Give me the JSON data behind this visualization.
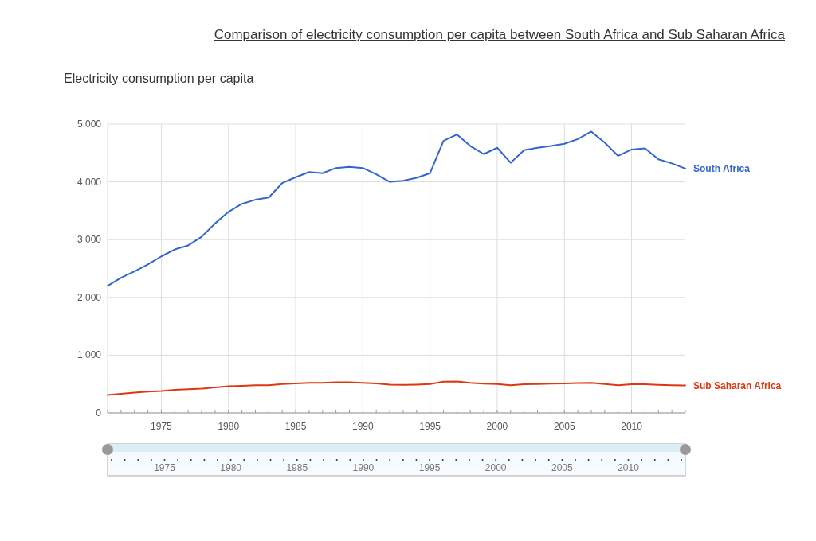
{
  "chart_data": {
    "type": "line",
    "title": "Comparison of electricity consumption per capita between South Africa and Sub Saharan Africa",
    "ylabel": "Electricity consumption per capita",
    "x": [
      1971,
      1972,
      1973,
      1974,
      1975,
      1976,
      1977,
      1978,
      1979,
      1980,
      1981,
      1982,
      1983,
      1984,
      1985,
      1986,
      1987,
      1988,
      1989,
      1990,
      1991,
      1992,
      1993,
      1994,
      1995,
      1996,
      1997,
      1998,
      1999,
      2000,
      2001,
      2002,
      2003,
      2004,
      2005,
      2006,
      2007,
      2008,
      2009,
      2010,
      2011,
      2012,
      2013,
      2014
    ],
    "series": [
      {
        "name": "South Africa",
        "color": "#3366cc",
        "values": [
          2200,
          2340,
          2450,
          2570,
          2710,
          2830,
          2900,
          3050,
          3280,
          3480,
          3620,
          3690,
          3730,
          3980,
          4080,
          4170,
          4150,
          4240,
          4260,
          4240,
          4130,
          4000,
          4020,
          4070,
          4150,
          4710,
          4820,
          4620,
          4480,
          4590,
          4330,
          4550,
          4590,
          4620,
          4660,
          4740,
          4870,
          4680,
          4450,
          4560,
          4580,
          4390,
          4320,
          4230
        ]
      },
      {
        "name": "Sub Saharan Africa",
        "color": "#dc3912",
        "values": [
          310,
          330,
          350,
          370,
          380,
          400,
          410,
          420,
          440,
          460,
          470,
          480,
          480,
          500,
          510,
          520,
          520,
          530,
          530,
          520,
          510,
          490,
          485,
          490,
          500,
          540,
          545,
          520,
          505,
          500,
          480,
          495,
          500,
          505,
          510,
          515,
          520,
          500,
          480,
          495,
          495,
          485,
          480,
          475
        ]
      }
    ],
    "xlim": [
      1971,
      2014
    ],
    "ylim": [
      0,
      5000
    ],
    "xticks": [
      1975,
      1980,
      1985,
      1990,
      1995,
      2000,
      2005,
      2010
    ],
    "yticks": [
      {
        "value": 0,
        "label": "0"
      },
      {
        "value": 1000,
        "label": "1,000"
      },
      {
        "value": 2000,
        "label": "2,000"
      },
      {
        "value": 3000,
        "label": "3,000"
      },
      {
        "value": 4000,
        "label": "4,000"
      },
      {
        "value": 5000,
        "label": "5,000"
      }
    ],
    "x2lim": [
      1971,
      2014
    ],
    "x2ticks": [
      1975,
      1980,
      1985,
      1990,
      1995,
      2000,
      2005,
      2010
    ],
    "grid": true,
    "legend": "right",
    "line_style": "solid"
  }
}
